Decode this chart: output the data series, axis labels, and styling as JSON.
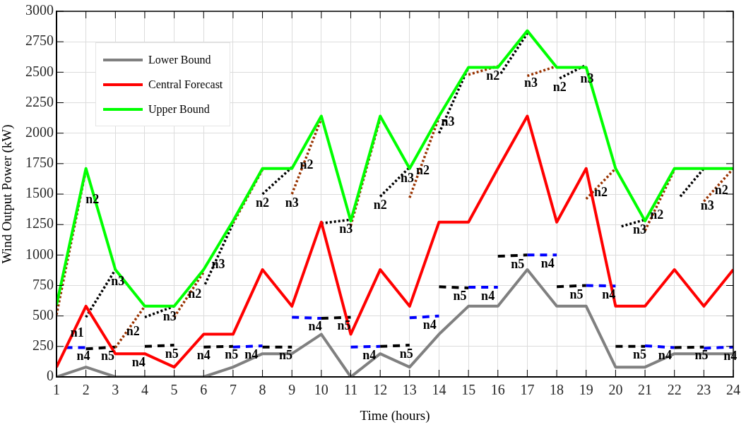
{
  "chart_data": {
    "type": "line",
    "xlabel": "Time (hours)",
    "ylabel": "Wind Output Power (kW)",
    "x": [
      1,
      2,
      3,
      4,
      5,
      6,
      7,
      8,
      9,
      10,
      11,
      12,
      13,
      14,
      15,
      16,
      17,
      18,
      19,
      20,
      21,
      22,
      23,
      24
    ],
    "xlim": [
      1,
      24
    ],
    "xticks": [
      1,
      2,
      3,
      4,
      5,
      6,
      7,
      8,
      9,
      10,
      11,
      12,
      13,
      14,
      15,
      16,
      17,
      18,
      19,
      20,
      21,
      22,
      23,
      24
    ],
    "ylim": [
      0,
      3000
    ],
    "yticks": [
      0,
      250,
      500,
      750,
      1000,
      1250,
      1500,
      1750,
      2000,
      2250,
      2500,
      2750,
      3000
    ],
    "grid": true,
    "legend": "top left",
    "marker": "none",
    "series": [
      {
        "name": "Lower Bound",
        "color": "#808080",
        "line_style": "solid",
        "values": [
          0,
          80,
          0,
          0,
          0,
          0,
          80,
          190,
          190,
          350,
          0,
          190,
          80,
          350,
          580,
          580,
          880,
          580,
          580,
          80,
          80,
          190,
          190,
          190
        ]
      },
      {
        "name": "Central Forecast",
        "color": "#ff0000",
        "line_style": "solid",
        "values": [
          80,
          580,
          190,
          190,
          80,
          350,
          350,
          880,
          580,
          1270,
          350,
          880,
          580,
          1270,
          1270,
          1710,
          2140,
          1270,
          1710,
          580,
          580,
          880,
          580,
          880
        ]
      },
      {
        "name": "Upper Bound",
        "color": "#00ff00",
        "line_style": "solid",
        "values": [
          590,
          1710,
          880,
          580,
          580,
          880,
          1280,
          1710,
          1710,
          2140,
          1280,
          2140,
          1710,
          2140,
          2540,
          2540,
          2840,
          2540,
          2540,
          1710,
          1280,
          1710,
          1710,
          1710
        ]
      },
      {
        "color": "#000000",
        "line_style": "dotted",
        "x": [
          2,
          3,
          null,
          4,
          5,
          null,
          6.05,
          7,
          null,
          8,
          9,
          null,
          10,
          11,
          null,
          12,
          13,
          null,
          14,
          15,
          null,
          16.1,
          17,
          null,
          18.1,
          19,
          null,
          20.2,
          21,
          null,
          22.2,
          23
        ],
        "values": [
          490,
          880,
          null,
          490,
          580,
          null,
          760,
          1260,
          null,
          1500,
          1720,
          null,
          1260,
          1290,
          null,
          1480,
          1720,
          null,
          2000,
          2540,
          null,
          2490,
          2820,
          null,
          2450,
          2560,
          null,
          1235,
          1290,
          null,
          1480,
          1710
        ]
      },
      {
        "color": "#993300",
        "line_style": "dotted",
        "x": [
          1,
          2,
          null,
          3,
          4,
          null,
          5,
          6,
          null,
          7,
          8,
          null,
          9,
          10,
          null,
          11,
          12,
          null,
          13,
          14,
          null,
          15,
          16,
          null,
          17,
          18,
          null,
          19,
          20,
          null,
          21,
          22,
          null,
          23,
          24
        ],
        "values": [
          510,
          1700,
          null,
          240,
          580,
          null,
          490,
          860,
          null,
          1260,
          1700,
          null,
          1500,
          2120,
          null,
          1240,
          2120,
          null,
          1470,
          2130,
          null,
          2480,
          2550,
          null,
          2470,
          2550,
          null,
          1460,
          1710,
          null,
          1200,
          1700,
          null,
          1440,
          1710
        ]
      },
      {
        "color": "#000000",
        "line_style": "dashed",
        "x": [
          2,
          3,
          null,
          4,
          5,
          null,
          6,
          7,
          null,
          8,
          9,
          null,
          10,
          11,
          null,
          12,
          13,
          null,
          14,
          15,
          null,
          16,
          17,
          null,
          18,
          19,
          null,
          20,
          21,
          null,
          22,
          23
        ],
        "values": [
          230,
          245,
          null,
          250,
          260,
          null,
          245,
          250,
          null,
          245,
          245,
          null,
          480,
          490,
          null,
          250,
          260,
          null,
          740,
          730,
          null,
          990,
          1000,
          null,
          740,
          750,
          null,
          250,
          250,
          null,
          240,
          245
        ]
      },
      {
        "color": "#0000ff",
        "line_style": "dashed",
        "x": [
          1.3,
          2,
          null,
          3,
          3.8,
          null,
          5,
          5.85,
          null,
          7,
          8,
          null,
          9,
          10,
          null,
          11,
          12,
          null,
          13,
          14,
          null,
          15,
          16,
          null,
          17,
          18,
          null,
          19,
          20,
          null,
          21,
          22,
          null,
          23,
          24
        ],
        "values": [
          240,
          240,
          null,
          0,
          0,
          null,
          0,
          0,
          null,
          245,
          255,
          null,
          490,
          480,
          null,
          245,
          250,
          null,
          485,
          500,
          null,
          735,
          735,
          null,
          1000,
          1000,
          null,
          750,
          745,
          null,
          255,
          240,
          null,
          235,
          245
        ]
      }
    ],
    "annotations": [
      {
        "text": "n1",
        "x": 1.7,
        "y": 430
      },
      {
        "text": "n4",
        "x": 1.91,
        "y": 240
      },
      {
        "text": "n5",
        "x": 2.74,
        "y": 241
      },
      {
        "text": "n3",
        "x": 3.08,
        "y": 856
      },
      {
        "text": "n2",
        "x": 3.6,
        "y": 444
      },
      {
        "text": "n4",
        "x": 3.79,
        "y": 190
      },
      {
        "text": "n3",
        "x": 4.85,
        "y": 567
      },
      {
        "text": "n5",
        "x": 4.92,
        "y": 259
      },
      {
        "text": "n2",
        "x": 5.7,
        "y": 749
      },
      {
        "text": "n4",
        "x": 6,
        "y": 245
      },
      {
        "text": "n3",
        "x": 6.5,
        "y": 997
      },
      {
        "text": "n5",
        "x": 6.95,
        "y": 250
      },
      {
        "text": "n4",
        "x": 7.62,
        "y": 251
      },
      {
        "text": "n5",
        "x": 8.79,
        "y": 245
      },
      {
        "text": "n2",
        "x": 8,
        "y": 1500
      },
      {
        "text": "n4",
        "x": 9.79,
        "y": 482
      },
      {
        "text": "n5",
        "x": 10.77,
        "y": 488
      },
      {
        "text": "n3",
        "x": 10.84,
        "y": 1285
      },
      {
        "text": "n4",
        "x": 11.63,
        "y": 248
      },
      {
        "text": "n2",
        "x": 2.22,
        "y": 1527
      },
      {
        "text": "n3",
        "x": 9,
        "y": 1500
      },
      {
        "text": "n2",
        "x": 9.5,
        "y": 1810
      },
      {
        "text": "n2",
        "x": 12,
        "y": 1480
      },
      {
        "text": "n3",
        "x": 12.92,
        "y": 1701
      },
      {
        "text": "n2",
        "x": 13.45,
        "y": 1767
      },
      {
        "text": "n3",
        "x": 14.3,
        "y": 2162
      },
      {
        "text": "n2",
        "x": 15.83,
        "y": 2538
      },
      {
        "text": "n3",
        "x": 17.12,
        "y": 2480
      },
      {
        "text": "n2",
        "x": 18.1,
        "y": 2450
      },
      {
        "text": "n3",
        "x": 19.03,
        "y": 2515
      },
      {
        "text": "n2",
        "x": 19.5,
        "y": 1585
      },
      {
        "text": "n3",
        "x": 20.82,
        "y": 1278
      },
      {
        "text": "n2",
        "x": 21.4,
        "y": 1400
      },
      {
        "text": "n3",
        "x": 23.12,
        "y": 1472
      },
      {
        "text": "n2",
        "x": 23.6,
        "y": 1602
      },
      {
        "text": "n5",
        "x": 12.89,
        "y": 259
      },
      {
        "text": "n4",
        "x": 13.68,
        "y": 495
      },
      {
        "text": "n5",
        "x": 14.71,
        "y": 733
      },
      {
        "text": "n4",
        "x": 15.66,
        "y": 735
      },
      {
        "text": "n5",
        "x": 16.67,
        "y": 997
      },
      {
        "text": "n4",
        "x": 17.69,
        "y": 1000
      },
      {
        "text": "n5",
        "x": 18.67,
        "y": 747
      },
      {
        "text": "n4",
        "x": 19.77,
        "y": 746
      },
      {
        "text": "n5",
        "x": 20.82,
        "y": 250
      },
      {
        "text": "n4",
        "x": 21.68,
        "y": 245
      },
      {
        "text": "n5",
        "x": 22.92,
        "y": 245
      },
      {
        "text": "n4",
        "x": 23.9,
        "y": 244
      }
    ]
  }
}
